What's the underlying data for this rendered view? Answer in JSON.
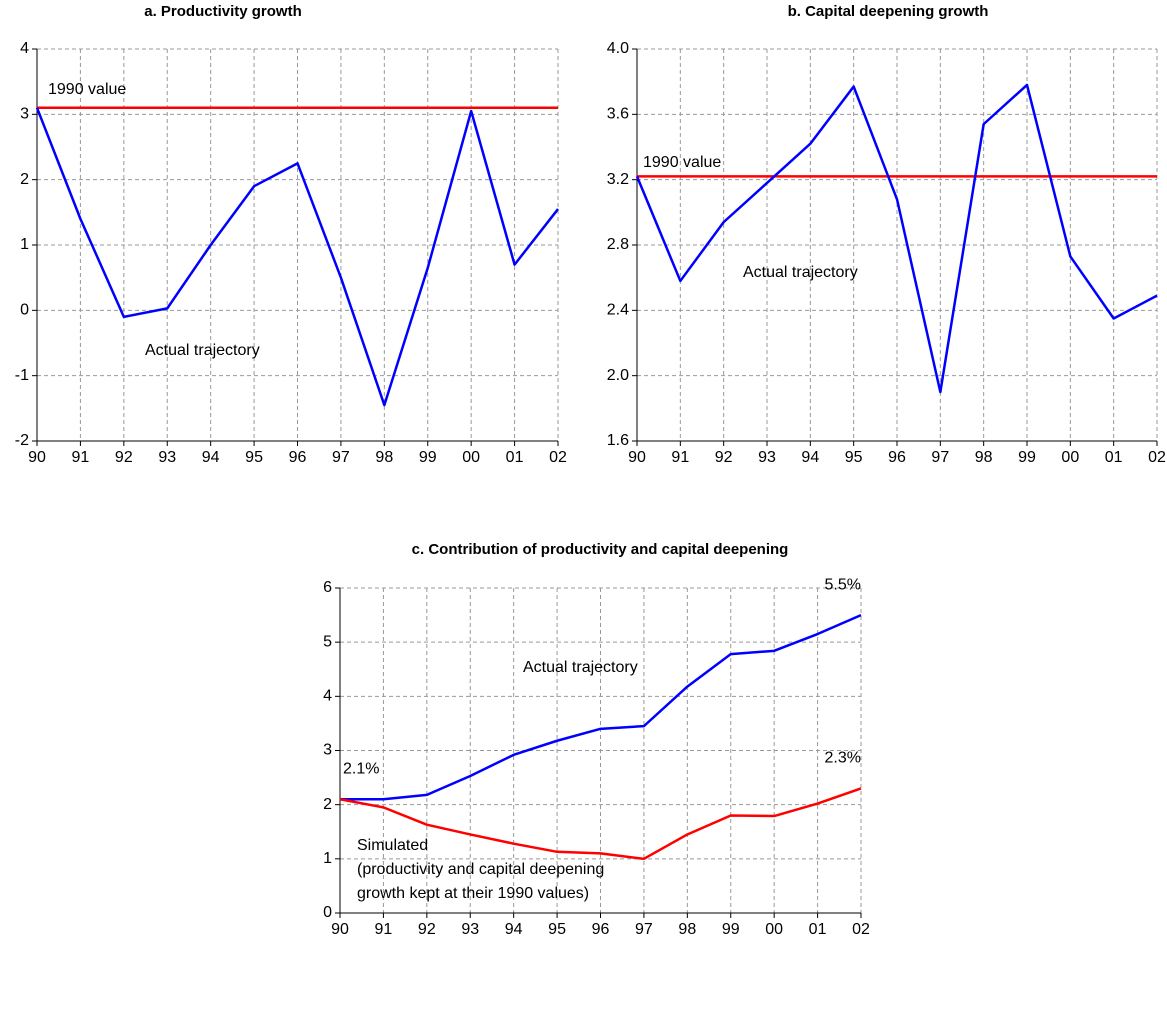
{
  "chart_data": [
    {
      "type": "line",
      "title": "a. Productivity growth",
      "categories": [
        "90",
        "91",
        "92",
        "93",
        "94",
        "95",
        "96",
        "97",
        "98",
        "99",
        "00",
        "01",
        "02"
      ],
      "series": [
        {
          "name": "Actual trajectory",
          "color": "#0000ff",
          "values": [
            3.1,
            1.4,
            -0.1,
            0.03,
            1.0,
            1.9,
            2.25,
            0.5,
            -1.45,
            0.65,
            3.05,
            0.7,
            1.55
          ]
        }
      ],
      "reference_lines": [
        {
          "value": 3.1,
          "label": "1990 value",
          "color": "#ff0000"
        }
      ],
      "ylim": [
        -2,
        4
      ],
      "yticks": [
        -2,
        -1,
        0,
        1,
        2,
        3,
        4
      ],
      "grid": true
    },
    {
      "type": "line",
      "title": "b. Capital deepening growth",
      "categories": [
        "90",
        "91",
        "92",
        "93",
        "94",
        "95",
        "96",
        "97",
        "98",
        "99",
        "00",
        "01",
        "02"
      ],
      "series": [
        {
          "name": "Actual trajectory",
          "color": "#0000ff",
          "values": [
            3.22,
            2.58,
            2.94,
            3.18,
            3.42,
            3.77,
            3.08,
            1.9,
            3.54,
            3.78,
            2.73,
            2.35,
            2.49
          ]
        }
      ],
      "reference_lines": [
        {
          "value": 3.22,
          "label": "1990 value",
          "color": "#ff0000"
        }
      ],
      "ylim": [
        1.6,
        4.0
      ],
      "yticks": [
        1.6,
        {
          "value": 2.0,
          "label": "2.0"
        },
        2.4,
        2.8,
        3.2,
        3.6,
        {
          "value": 4.0,
          "label": "4.0"
        }
      ],
      "grid": true
    },
    {
      "type": "line",
      "title": "c. Contribution of productivity and capital deepening",
      "categories": [
        "90",
        "91",
        "92",
        "93",
        "94",
        "95",
        "96",
        "97",
        "98",
        "99",
        "00",
        "01",
        "02"
      ],
      "series": [
        {
          "name": "Actual trajectory",
          "color": "#0000ff",
          "values": [
            2.1,
            2.1,
            2.18,
            2.53,
            2.92,
            3.18,
            3.4,
            3.45,
            4.18,
            4.78,
            4.84,
            5.15,
            5.5
          ],
          "value_labels": [
            "2.1%",
            null,
            null,
            null,
            null,
            null,
            null,
            null,
            null,
            null,
            null,
            null,
            "5.5%"
          ]
        },
        {
          "name": "Simulated",
          "color": "#ff0000",
          "values": [
            2.1,
            1.95,
            1.63,
            1.45,
            1.28,
            1.13,
            1.1,
            1.0,
            1.45,
            1.8,
            1.79,
            2.02,
            2.3
          ],
          "value_labels": [
            null,
            null,
            null,
            null,
            null,
            null,
            null,
            null,
            null,
            null,
            null,
            null,
            "2.3%"
          ],
          "note": [
            "(productivity and capital deepening",
            "growth kept at their 1990 values)"
          ]
        }
      ],
      "ylim": [
        0,
        6
      ],
      "yticks": [
        0,
        1,
        2,
        3,
        4,
        5,
        6
      ],
      "grid": true
    }
  ]
}
